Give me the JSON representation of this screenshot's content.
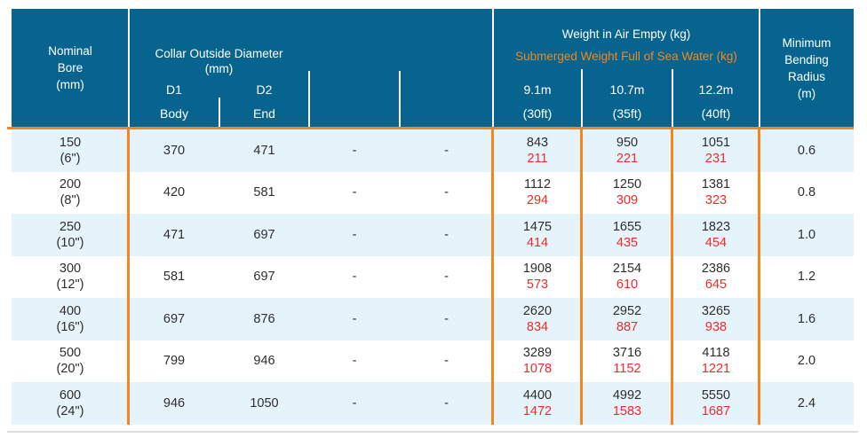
{
  "colors": {
    "header_bg": "#07648f",
    "row_alt_bg": "#e5f3fb",
    "accent_orange": "#f5861f",
    "submerged_red": "#ee2b29",
    "text_dark": "#2f2d2d",
    "header_text": "#ffffff"
  },
  "header": {
    "nominal_bore": "Nominal\nBore\n(mm)",
    "collar": {
      "title": "Collar Outside Diameter",
      "unit": "(mm)",
      "d1": "D1",
      "d1_sub": "Body",
      "d2": "D2",
      "d2_sub": "End"
    },
    "weight": {
      "air_label": "Weight in Air Empty (kg)",
      "submerged_label": "Submerged Weight Full of Sea Water (kg)",
      "lengths": [
        {
          "m": "9.1m",
          "ft": "(30ft)"
        },
        {
          "m": "10.7m",
          "ft": "(35ft)"
        },
        {
          "m": "12.2m",
          "ft": "(40ft)"
        }
      ]
    },
    "min_bending": "Minimum\nBending\nRadius\n(m)"
  },
  "rows": [
    {
      "bore": "150",
      "bore_in": "(6\")",
      "d1": "370",
      "d2": "471",
      "c4": "-",
      "c5": "-",
      "w1_air": "843",
      "w1_sub": "211",
      "w2_air": "950",
      "w2_sub": "221",
      "w3_air": "1051",
      "w3_sub": "231",
      "radius": "0.6"
    },
    {
      "bore": "200",
      "bore_in": "(8\")",
      "d1": "420",
      "d2": "581",
      "c4": "-",
      "c5": "-",
      "w1_air": "1112",
      "w1_sub": "294",
      "w2_air": "1250",
      "w2_sub": "309",
      "w3_air": "1381",
      "w3_sub": "323",
      "radius": "0.8"
    },
    {
      "bore": "250",
      "bore_in": "(10\")",
      "d1": "471",
      "d2": "697",
      "c4": "-",
      "c5": "-",
      "w1_air": "1475",
      "w1_sub": "414",
      "w2_air": "1655",
      "w2_sub": "435",
      "w3_air": "1823",
      "w3_sub": "454",
      "radius": "1.0"
    },
    {
      "bore": "300",
      "bore_in": "(12\")",
      "d1": "581",
      "d2": "697",
      "c4": "-",
      "c5": "-",
      "w1_air": "1908",
      "w1_sub": "573",
      "w2_air": "2154",
      "w2_sub": "610",
      "w3_air": "2386",
      "w3_sub": "645",
      "radius": "1.2"
    },
    {
      "bore": "400",
      "bore_in": "(16\")",
      "d1": "697",
      "d2": "876",
      "c4": "-",
      "c5": "-",
      "w1_air": "2620",
      "w1_sub": "834",
      "w2_air": "2952",
      "w2_sub": "887",
      "w3_air": "3265",
      "w3_sub": "938",
      "radius": "1.6"
    },
    {
      "bore": "500",
      "bore_in": "(20\")",
      "d1": "799",
      "d2": "946",
      "c4": "-",
      "c5": "-",
      "w1_air": "3289",
      "w1_sub": "1078",
      "w2_air": "3716",
      "w2_sub": "1152",
      "w3_air": "4118",
      "w3_sub": "1221",
      "radius": "2.0"
    },
    {
      "bore": "600",
      "bore_in": "(24\")",
      "d1": "946",
      "d2": "1050",
      "c4": "-",
      "c5": "-",
      "w1_air": "4400",
      "w1_sub": "1472",
      "w2_air": "4992",
      "w2_sub": "1583",
      "w3_air": "5550",
      "w3_sub": "1687",
      "radius": "2.4"
    }
  ]
}
